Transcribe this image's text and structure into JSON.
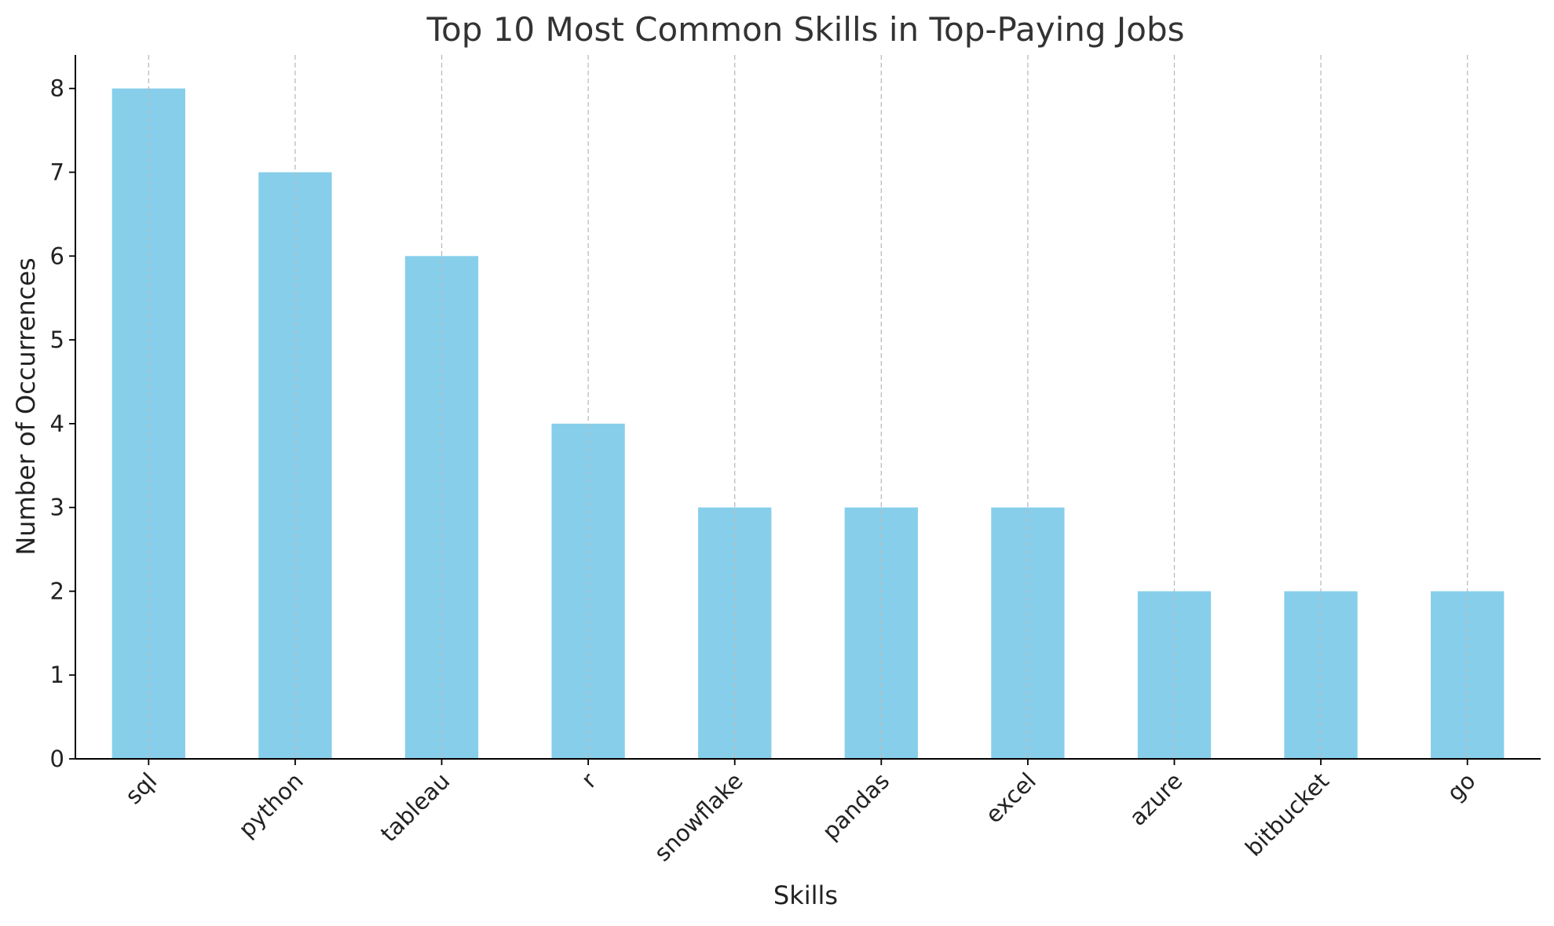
{
  "chart_data": {
    "type": "bar",
    "title": "Top 10 Most Common Skills in Top-Paying Jobs",
    "xlabel": "Skills",
    "ylabel": "Number of Occurrences",
    "categories": [
      "sql",
      "python",
      "tableau",
      "r",
      "snowflake",
      "pandas",
      "excel",
      "azure",
      "bitbucket",
      "go"
    ],
    "values": [
      8,
      7,
      6,
      4,
      3,
      3,
      3,
      2,
      2,
      2
    ],
    "ylim": [
      0,
      8.4
    ],
    "yticks": [
      "0",
      "1",
      "2",
      "3",
      "4",
      "5",
      "6",
      "7",
      "8"
    ],
    "grid": "vertical dashed",
    "bar_color": "#87CEEB",
    "grid_color": "#bbbbbb",
    "axis_color": "#000000"
  }
}
